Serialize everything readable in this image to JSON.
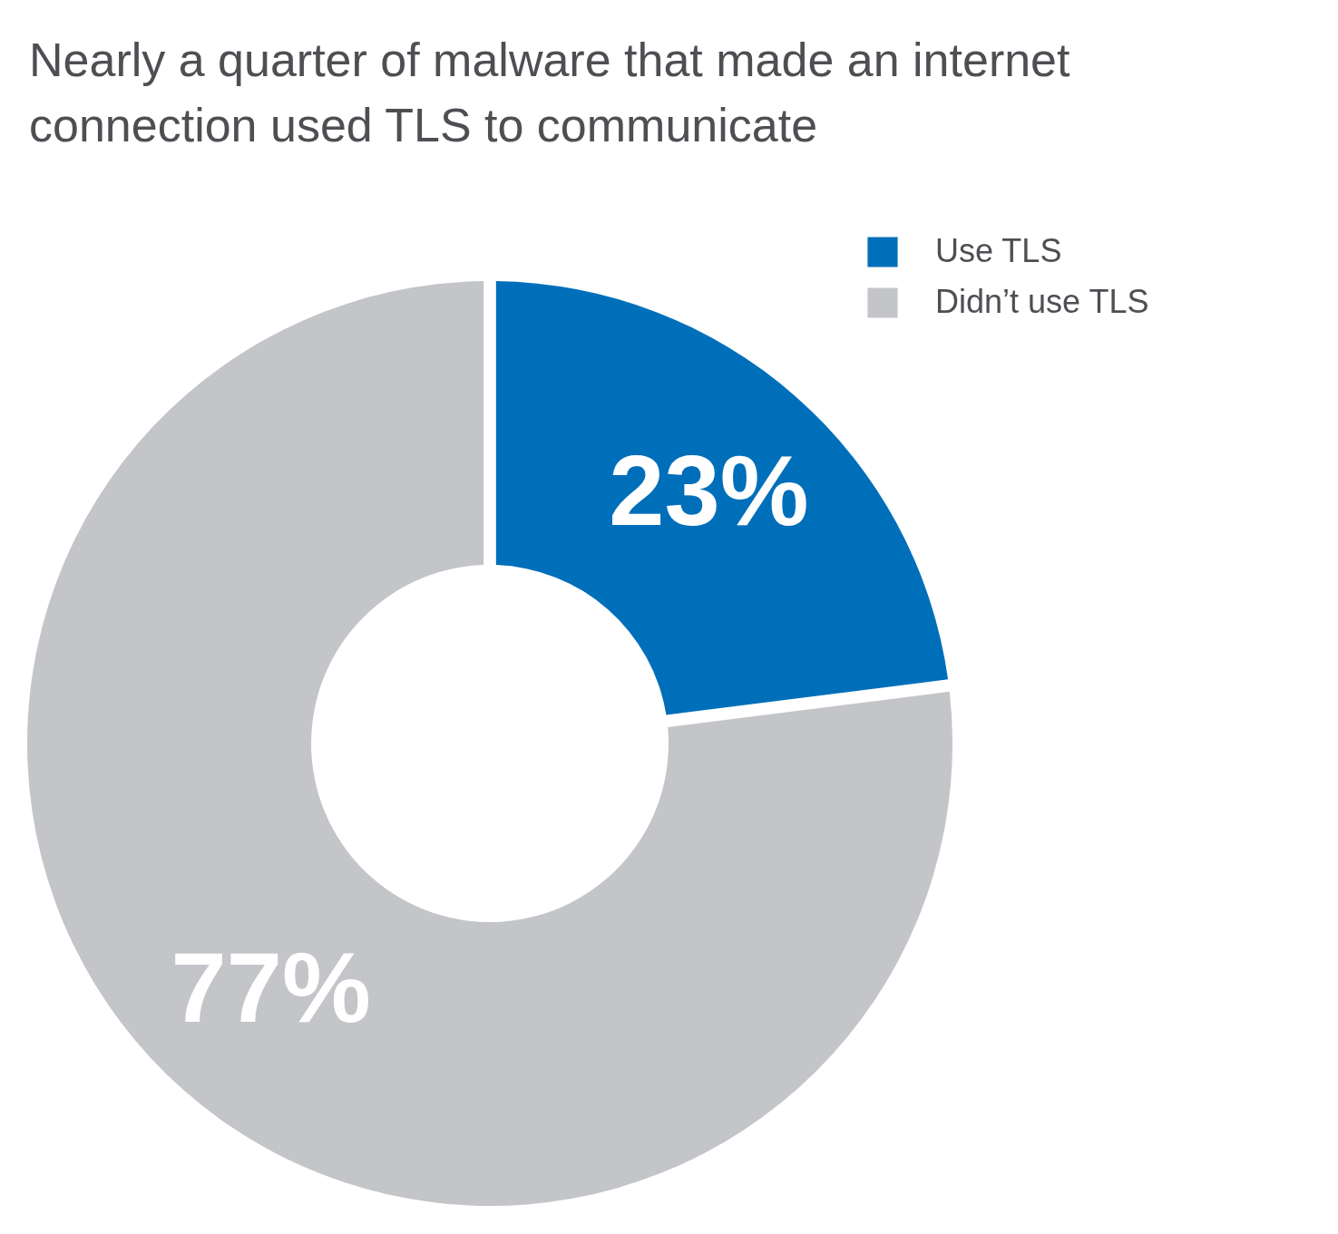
{
  "chart_data": {
    "type": "donut",
    "title": "Nearly a quarter of malware that made an internet connection used TLS to communicate",
    "categories": [
      "Use TLS",
      "Didn’t use TLS"
    ],
    "values": [
      23,
      77
    ],
    "colors": [
      "#006fba",
      "#c3c5c9"
    ],
    "value_labels": [
      "23%",
      "77%"
    ],
    "legend": "top right"
  }
}
